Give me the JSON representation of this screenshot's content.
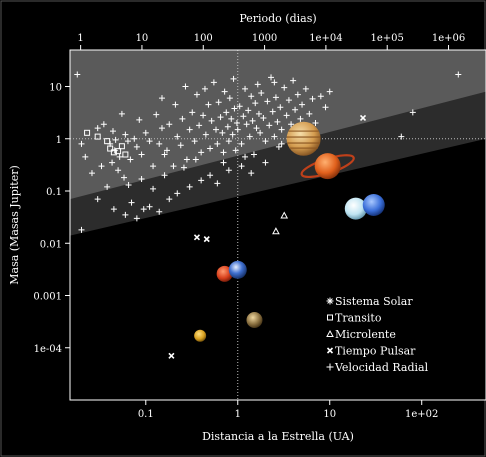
{
  "chart_data": {
    "type": "scatter",
    "x_scale": "log",
    "y_scale": "log",
    "xlim": [
      0.015,
      500
    ],
    "ylim": [
      1e-05,
      50
    ],
    "top_axis_label": "Periodo (dias)",
    "top_ticks": [
      "1",
      "10",
      "100",
      "1000",
      "1e+04",
      "1e+05",
      "1e+06"
    ],
    "top_tick_days": [
      1,
      10,
      100,
      1000,
      10000,
      100000,
      1000000
    ],
    "xlabel": "Distancia a la Estrella (UA)",
    "x_ticks": [
      {
        "v": 0.1,
        "label": "0.1"
      },
      {
        "v": 1,
        "label": "1"
      },
      {
        "v": 10,
        "label": "10"
      },
      {
        "v": 100,
        "label": "1e+02"
      }
    ],
    "ylabel": "Masa (Masas Jupiter)",
    "y_ticks": [
      {
        "v": 10,
        "label": "10"
      },
      {
        "v": 1,
        "label": "1"
      },
      {
        "v": 0.1,
        "label": "0.1"
      },
      {
        "v": 0.01,
        "label": "0.01"
      },
      {
        "v": 0.001,
        "label": "0.001"
      },
      {
        "v": 0.0001,
        "label": "1e-04"
      }
    ],
    "grid": false,
    "reference_lines": {
      "x": 1,
      "y": 1
    },
    "legend_position": "bottom-right",
    "legend": [
      {
        "marker": "star",
        "label": "Sistema Solar"
      },
      {
        "marker": "square",
        "label": "Transito"
      },
      {
        "marker": "triangle",
        "label": "Microlente"
      },
      {
        "marker": "x",
        "label": "Tiempo Pulsar"
      },
      {
        "marker": "plus",
        "label": "Velocidad Radial"
      }
    ],
    "shaded_regions": [
      {
        "name": "upper",
        "boundary": [
          [
            0.015,
            0.07
          ],
          [
            500,
            8
          ]
        ],
        "color": "#5a5a5a"
      },
      {
        "name": "middle",
        "boundary": [
          [
            0.015,
            0.014
          ],
          [
            500,
            1.0
          ]
        ],
        "color": "#2c2c2c"
      }
    ],
    "series": [
      {
        "name": "Sistema Solar",
        "marker": "planet",
        "points": [
          {
            "x": 0.39,
            "y": 0.00017,
            "planet": "mercury"
          },
          {
            "x": 0.72,
            "y": 0.0026,
            "planet": "venus"
          },
          {
            "x": 1.0,
            "y": 0.0031,
            "planet": "earth"
          },
          {
            "x": 1.52,
            "y": 0.00034,
            "planet": "mars"
          },
          {
            "x": 5.2,
            "y": 1.0,
            "planet": "jupiter"
          },
          {
            "x": 9.5,
            "y": 0.3,
            "planet": "saturn"
          },
          {
            "x": 19.2,
            "y": 0.046,
            "planet": "uranus"
          },
          {
            "x": 30.1,
            "y": 0.054,
            "planet": "neptune"
          }
        ]
      },
      {
        "name": "Transito",
        "marker": "square",
        "points": [
          {
            "x": 0.023,
            "y": 1.3
          },
          {
            "x": 0.03,
            "y": 1.1
          },
          {
            "x": 0.038,
            "y": 0.9
          },
          {
            "x": 0.041,
            "y": 0.65
          },
          {
            "x": 0.045,
            "y": 0.55
          },
          {
            "x": 0.05,
            "y": 0.58
          },
          {
            "x": 0.055,
            "y": 0.72
          },
          {
            "x": 0.06,
            "y": 0.5
          }
        ]
      },
      {
        "name": "Microlente",
        "marker": "triangle",
        "points": [
          {
            "x": 2.6,
            "y": 0.017
          },
          {
            "x": 3.2,
            "y": 0.034
          }
        ]
      },
      {
        "name": "Tiempo Pulsar",
        "marker": "x",
        "points": [
          {
            "x": 0.19,
            "y": 7e-05
          },
          {
            "x": 0.36,
            "y": 0.013
          },
          {
            "x": 0.46,
            "y": 0.012
          },
          {
            "x": 23.0,
            "y": 2.5
          }
        ]
      },
      {
        "name": "Velocidad Radial",
        "marker": "plus",
        "points": [
          {
            "x": 0.018,
            "y": 17
          },
          {
            "x": 0.02,
            "y": 0.8
          },
          {
            "x": 0.022,
            "y": 0.45
          },
          {
            "x": 0.026,
            "y": 0.22
          },
          {
            "x": 0.03,
            "y": 1.6
          },
          {
            "x": 0.033,
            "y": 0.3
          },
          {
            "x": 0.035,
            "y": 1.9
          },
          {
            "x": 0.038,
            "y": 0.12
          },
          {
            "x": 0.041,
            "y": 0.8
          },
          {
            "x": 0.043,
            "y": 0.35
          },
          {
            "x": 0.044,
            "y": 1.4
          },
          {
            "x": 0.046,
            "y": 0.6
          },
          {
            "x": 0.047,
            "y": 0.95
          },
          {
            "x": 0.05,
            "y": 0.25
          },
          {
            "x": 0.052,
            "y": 0.45
          },
          {
            "x": 0.055,
            "y": 3.0
          },
          {
            "x": 0.058,
            "y": 0.18
          },
          {
            "x": 0.06,
            "y": 1.2
          },
          {
            "x": 0.064,
            "y": 0.9
          },
          {
            "x": 0.068,
            "y": 0.4
          },
          {
            "x": 0.07,
            "y": 0.06
          },
          {
            "x": 0.075,
            "y": 1.0
          },
          {
            "x": 0.08,
            "y": 0.7
          },
          {
            "x": 0.085,
            "y": 2.3
          },
          {
            "x": 0.09,
            "y": 0.5
          },
          {
            "x": 0.095,
            "y": 0.045
          },
          {
            "x": 0.1,
            "y": 1.3
          },
          {
            "x": 0.11,
            "y": 0.9
          },
          {
            "x": 0.12,
            "y": 0.11
          },
          {
            "x": 0.13,
            "y": 2.9
          },
          {
            "x": 0.14,
            "y": 0.8
          },
          {
            "x": 0.15,
            "y": 1.6
          },
          {
            "x": 0.16,
            "y": 0.2
          },
          {
            "x": 0.17,
            "y": 0.6
          },
          {
            "x": 0.18,
            "y": 1.9
          },
          {
            "x": 0.2,
            "y": 0.3
          },
          {
            "x": 0.21,
            "y": 4.5
          },
          {
            "x": 0.22,
            "y": 1.1
          },
          {
            "x": 0.24,
            "y": 0.75
          },
          {
            "x": 0.25,
            "y": 2.4
          },
          {
            "x": 0.27,
            "y": 10
          },
          {
            "x": 0.28,
            "y": 0.4
          },
          {
            "x": 0.3,
            "y": 1.5
          },
          {
            "x": 0.32,
            "y": 3.2
          },
          {
            "x": 0.34,
            "y": 0.9
          },
          {
            "x": 0.36,
            "y": 7
          },
          {
            "x": 0.38,
            "y": 1.8
          },
          {
            "x": 0.4,
            "y": 0.55
          },
          {
            "x": 0.42,
            "y": 2.8
          },
          {
            "x": 0.45,
            "y": 1.2
          },
          {
            "x": 0.48,
            "y": 4.5
          },
          {
            "x": 0.5,
            "y": 0.65
          },
          {
            "x": 0.52,
            "y": 2.2
          },
          {
            "x": 0.55,
            "y": 12
          },
          {
            "x": 0.58,
            "y": 1.5
          },
          {
            "x": 0.6,
            "y": 0.8
          },
          {
            "x": 0.62,
            "y": 5
          },
          {
            "x": 0.65,
            "y": 2.6
          },
          {
            "x": 0.68,
            "y": 1.3
          },
          {
            "x": 0.7,
            "y": 0.35
          },
          {
            "x": 0.72,
            "y": 8
          },
          {
            "x": 0.75,
            "y": 3.2
          },
          {
            "x": 0.78,
            "y": 1.7
          },
          {
            "x": 0.8,
            "y": 0.9
          },
          {
            "x": 0.82,
            "y": 6
          },
          {
            "x": 0.85,
            "y": 2.4
          },
          {
            "x": 0.88,
            "y": 1.2
          },
          {
            "x": 0.9,
            "y": 14
          },
          {
            "x": 0.92,
            "y": 3.8
          },
          {
            "x": 0.95,
            "y": 0.6
          },
          {
            "x": 0.98,
            "y": 2.0
          },
          {
            "x": 1.0,
            "y": 1.5
          },
          {
            "x": 1.05,
            "y": 4.2
          },
          {
            "x": 1.1,
            "y": 0.8
          },
          {
            "x": 1.15,
            "y": 2.7
          },
          {
            "x": 1.2,
            "y": 9
          },
          {
            "x": 1.25,
            "y": 1.9
          },
          {
            "x": 1.3,
            "y": 3.5
          },
          {
            "x": 1.35,
            "y": 1.1
          },
          {
            "x": 1.4,
            "y": 6.5
          },
          {
            "x": 1.45,
            "y": 2.2
          },
          {
            "x": 1.5,
            "y": 0.5
          },
          {
            "x": 1.55,
            "y": 4.8
          },
          {
            "x": 1.6,
            "y": 1.6
          },
          {
            "x": 1.65,
            "y": 11
          },
          {
            "x": 1.7,
            "y": 3.0
          },
          {
            "x": 1.75,
            "y": 1.3
          },
          {
            "x": 1.8,
            "y": 7.5
          },
          {
            "x": 1.9,
            "y": 2.5
          },
          {
            "x": 2.0,
            "y": 0.9
          },
          {
            "x": 2.1,
            "y": 5.2
          },
          {
            "x": 2.2,
            "y": 1.8
          },
          {
            "x": 2.3,
            "y": 15
          },
          {
            "x": 2.4,
            "y": 3.3
          },
          {
            "x": 2.5,
            "y": 1.1
          },
          {
            "x": 2.6,
            "y": 6.2
          },
          {
            "x": 2.7,
            "y": 2.1
          },
          {
            "x": 2.8,
            "y": 0.7
          },
          {
            "x": 2.9,
            "y": 4.0
          },
          {
            "x": 3.0,
            "y": 1.5
          },
          {
            "x": 3.2,
            "y": 9.5
          },
          {
            "x": 3.4,
            "y": 2.8
          },
          {
            "x": 3.6,
            "y": 5.5
          },
          {
            "x": 3.8,
            "y": 1.9
          },
          {
            "x": 4.0,
            "y": 13
          },
          {
            "x": 4.2,
            "y": 3.6
          },
          {
            "x": 4.5,
            "y": 7
          },
          {
            "x": 4.8,
            "y": 2.4
          },
          {
            "x": 5.0,
            "y": 4.5
          },
          {
            "x": 5.5,
            "y": 9
          },
          {
            "x": 6.0,
            "y": 3.0
          },
          {
            "x": 6.5,
            "y": 5.8
          },
          {
            "x": 7.0,
            "y": 2.0
          },
          {
            "x": 8.0,
            "y": 6.5
          },
          {
            "x": 9.0,
            "y": 4.0
          },
          {
            "x": 10,
            "y": 8
          },
          {
            "x": 0.03,
            "y": 0.07
          },
          {
            "x": 0.045,
            "y": 0.045
          },
          {
            "x": 0.06,
            "y": 0.035
          },
          {
            "x": 0.08,
            "y": 0.03
          },
          {
            "x": 0.11,
            "y": 0.05
          },
          {
            "x": 0.14,
            "y": 0.04
          },
          {
            "x": 0.18,
            "y": 0.07
          },
          {
            "x": 0.22,
            "y": 0.09
          },
          {
            "x": 0.3,
            "y": 0.12
          },
          {
            "x": 0.4,
            "y": 0.16
          },
          {
            "x": 0.5,
            "y": 0.2
          },
          {
            "x": 0.6,
            "y": 0.14
          },
          {
            "x": 0.8,
            "y": 0.25
          },
          {
            "x": 1.1,
            "y": 0.3
          },
          {
            "x": 1.4,
            "y": 0.22
          },
          {
            "x": 2.0,
            "y": 0.35
          },
          {
            "x": 0.02,
            "y": 0.018
          },
          {
            "x": 0.12,
            "y": 0.3
          },
          {
            "x": 0.16,
            "y": 0.5
          },
          {
            "x": 0.26,
            "y": 0.28
          },
          {
            "x": 250,
            "y": 17
          },
          {
            "x": 80,
            "y": 3.2
          },
          {
            "x": 60,
            "y": 1.1
          },
          {
            "x": 0.35,
            "y": 0.4
          },
          {
            "x": 0.09,
            "y": 0.17
          },
          {
            "x": 0.065,
            "y": 0.13
          },
          {
            "x": 1.2,
            "y": 0.45
          },
          {
            "x": 0.7,
            "y": 0.55
          },
          {
            "x": 3.0,
            "y": 0.8
          },
          {
            "x": 2.5,
            "y": 12
          },
          {
            "x": 0.44,
            "y": 9
          },
          {
            "x": 0.15,
            "y": 6
          }
        ]
      }
    ]
  }
}
